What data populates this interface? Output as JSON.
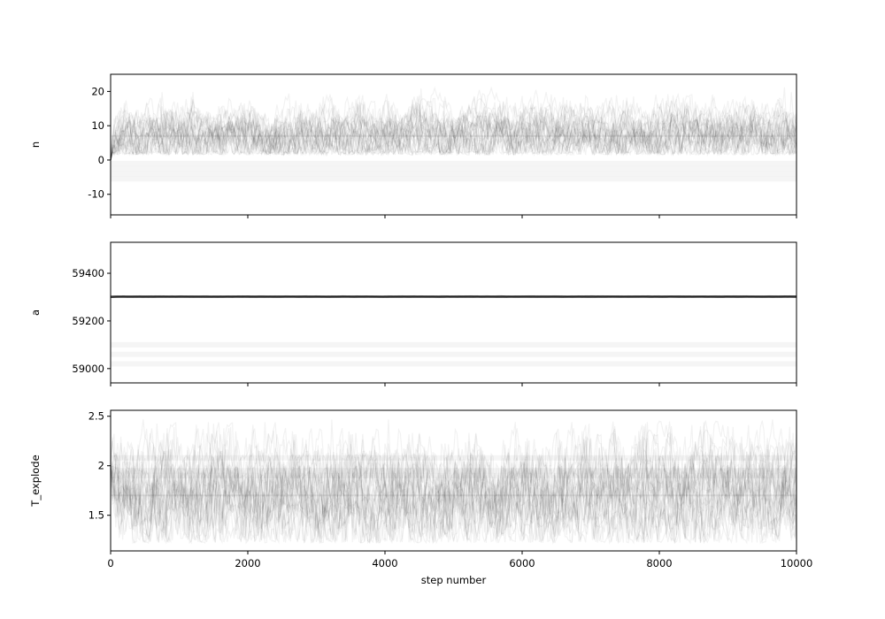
{
  "chart_data": {
    "type": "line",
    "subtype": "mcmc-trace",
    "xlabel": "step number",
    "x_ticks": [
      0,
      2000,
      4000,
      6000,
      8000,
      10000
    ],
    "xlim": [
      0,
      10000
    ],
    "grid": false,
    "legend": "none",
    "line_color": "#000000",
    "panels": [
      {
        "ylabel": "n",
        "ylim": [
          -16,
          25
        ],
        "y_ticks": [
          20,
          10,
          0,
          -10
        ],
        "burn_in_start": 0,
        "converged_center": 7,
        "converged_range": [
          1.5,
          22
        ],
        "stuck_walker_levels": [
          -1,
          -2.5,
          -4,
          -5.5
        ]
      },
      {
        "ylabel": "a",
        "ylim": [
          58940,
          59530
        ],
        "y_ticks": [
          59400,
          59200,
          59000
        ],
        "burn_in_start": 59300,
        "converged_center": 59302,
        "converged_range": [
          59298,
          59306
        ],
        "stuck_walker_levels": [
          59100,
          59060,
          59020
        ]
      },
      {
        "ylabel": "T_explode",
        "ylim": [
          1.14,
          2.56
        ],
        "y_ticks": [
          2.5,
          2.0,
          1.5
        ],
        "burn_in_start": 2.0,
        "converged_center": 1.7,
        "converged_range": [
          1.22,
          2.47
        ],
        "stuck_walker_levels": [
          2.08,
          1.95,
          1.9
        ]
      }
    ]
  }
}
